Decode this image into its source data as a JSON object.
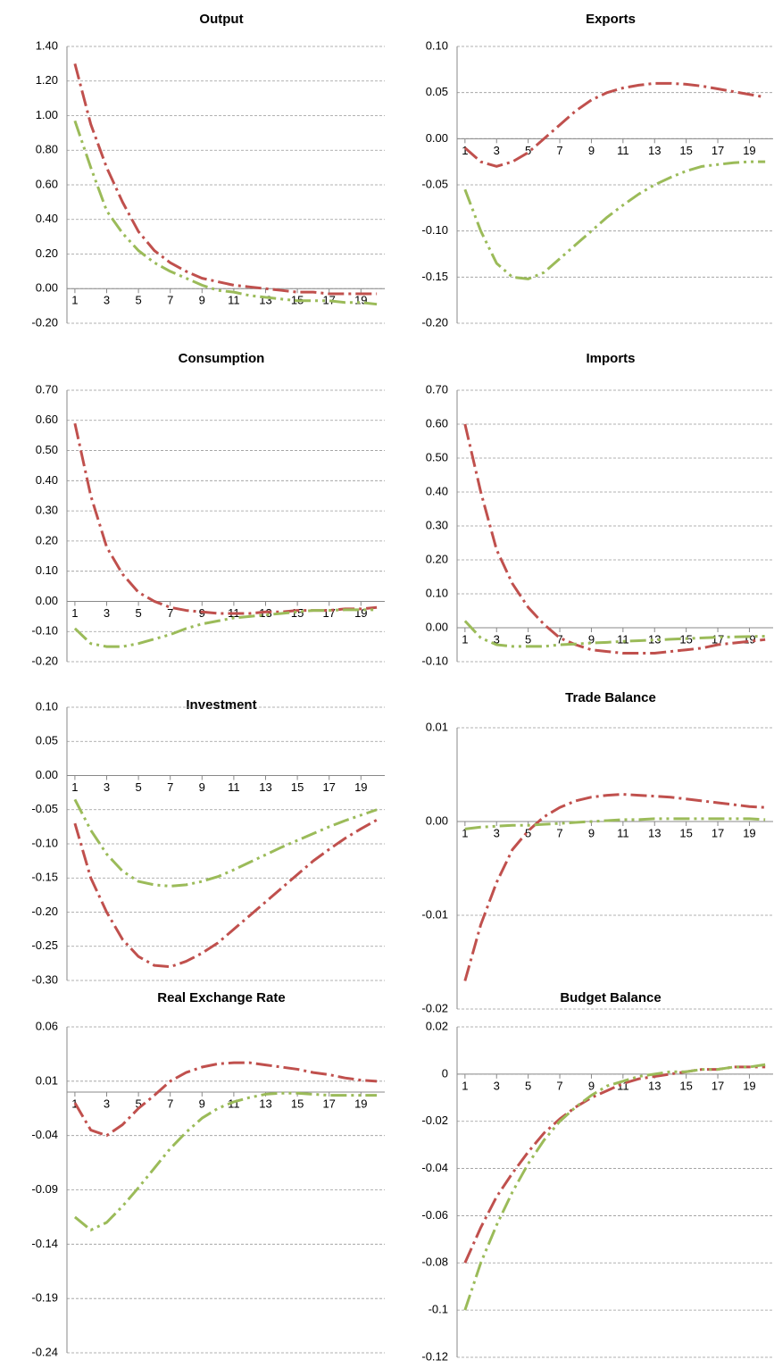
{
  "chart_data": [
    {
      "type": "line",
      "title": "Output",
      "x": [
        1,
        2,
        3,
        4,
        5,
        6,
        7,
        8,
        9,
        10,
        11,
        12,
        13,
        14,
        15,
        16,
        17,
        18,
        19,
        20
      ],
      "xlim": [
        0.5,
        20.5
      ],
      "xticks": [
        1,
        3,
        5,
        7,
        9,
        11,
        13,
        15,
        17,
        19
      ],
      "ylim": [
        -0.2,
        1.4
      ],
      "yticks": [
        {
          "value": 1.4,
          "label": "1.40"
        },
        {
          "value": 1.2,
          "label": "1.20"
        },
        {
          "value": 1,
          "label": "1.00"
        },
        {
          "value": 0.8,
          "label": "0.80"
        },
        {
          "value": 0.6,
          "label": "0.60"
        },
        {
          "value": 0.4,
          "label": "0.40"
        },
        {
          "value": 0.2,
          "label": "0.20"
        },
        {
          "value": 0,
          "label": "0.00"
        },
        {
          "value": -0.2,
          "label": "-0.20"
        }
      ],
      "grid": true,
      "series": [
        {
          "color": "#c0504d",
          "values": [
            1.3,
            0.95,
            0.7,
            0.5,
            0.33,
            0.22,
            0.15,
            0.1,
            0.06,
            0.04,
            0.02,
            0.01,
            0.0,
            -0.01,
            -0.02,
            -0.02,
            -0.03,
            -0.03,
            -0.03,
            -0.03
          ]
        },
        {
          "color": "#9bbb59",
          "values": [
            0.97,
            0.7,
            0.45,
            0.32,
            0.22,
            0.15,
            0.1,
            0.06,
            0.02,
            -0.01,
            -0.02,
            -0.04,
            -0.05,
            -0.06,
            -0.07,
            -0.07,
            -0.07,
            -0.08,
            -0.08,
            -0.09
          ]
        }
      ]
    },
    {
      "type": "line",
      "title": "Exports",
      "x": [
        1,
        2,
        3,
        4,
        5,
        6,
        7,
        8,
        9,
        10,
        11,
        12,
        13,
        14,
        15,
        16,
        17,
        18,
        19,
        20
      ],
      "xlim": [
        0.5,
        20.5
      ],
      "xticks": [
        1,
        3,
        5,
        7,
        9,
        11,
        13,
        15,
        17,
        19
      ],
      "ylim": [
        -0.2,
        0.1
      ],
      "yticks": [
        {
          "value": 0.1,
          "label": "0.10"
        },
        0.05,
        {
          "value": 0,
          "label": "0.00"
        },
        -0.05,
        {
          "value": -0.1,
          "label": "-0.10"
        },
        -0.15,
        {
          "value": -0.2,
          "label": "-0.20"
        }
      ],
      "grid": true,
      "series": [
        {
          "color": "#c0504d",
          "values": [
            -0.01,
            -0.025,
            -0.03,
            -0.025,
            -0.015,
            0.0,
            0.015,
            0.03,
            0.042,
            0.05,
            0.055,
            0.058,
            0.06,
            0.06,
            0.059,
            0.057,
            0.054,
            0.051,
            0.048,
            0.045
          ]
        },
        {
          "color": "#9bbb59",
          "values": [
            -0.055,
            -0.1,
            -0.135,
            -0.15,
            -0.152,
            -0.145,
            -0.13,
            -0.115,
            -0.1,
            -0.085,
            -0.072,
            -0.06,
            -0.05,
            -0.042,
            -0.035,
            -0.03,
            -0.028,
            -0.026,
            -0.025,
            -0.025
          ]
        }
      ]
    },
    {
      "type": "line",
      "title": "Consumption",
      "x": [
        1,
        2,
        3,
        4,
        5,
        6,
        7,
        8,
        9,
        10,
        11,
        12,
        13,
        14,
        15,
        16,
        17,
        18,
        19,
        20
      ],
      "xlim": [
        0.5,
        20.5
      ],
      "xticks": [
        1,
        3,
        5,
        7,
        9,
        11,
        13,
        15,
        17,
        19
      ],
      "ylim": [
        -0.2,
        0.7
      ],
      "yticks": [
        {
          "value": 0.7,
          "label": "0.70"
        },
        {
          "value": 0.6,
          "label": "0.60"
        },
        {
          "value": 0.5,
          "label": "0.50"
        },
        {
          "value": 0.4,
          "label": "0.40"
        },
        {
          "value": 0.3,
          "label": "0.30"
        },
        {
          "value": 0.2,
          "label": "0.20"
        },
        {
          "value": 0.1,
          "label": "0.10"
        },
        {
          "value": 0,
          "label": "0.00"
        },
        {
          "value": -0.1,
          "label": "-0.10"
        },
        {
          "value": -0.2,
          "label": "-0.20"
        }
      ],
      "grid": true,
      "series": [
        {
          "color": "#c0504d",
          "values": [
            0.59,
            0.35,
            0.18,
            0.09,
            0.03,
            0.0,
            -0.02,
            -0.03,
            -0.035,
            -0.04,
            -0.04,
            -0.04,
            -0.035,
            -0.035,
            -0.03,
            -0.03,
            -0.03,
            -0.025,
            -0.025,
            -0.02
          ]
        },
        {
          "color": "#9bbb59",
          "values": [
            -0.09,
            -0.14,
            -0.15,
            -0.15,
            -0.14,
            -0.125,
            -0.11,
            -0.09,
            -0.075,
            -0.065,
            -0.055,
            -0.05,
            -0.045,
            -0.04,
            -0.035,
            -0.03,
            -0.03,
            -0.028,
            -0.028,
            -0.028
          ]
        }
      ]
    },
    {
      "type": "line",
      "title": "Imports",
      "x": [
        1,
        2,
        3,
        4,
        5,
        6,
        7,
        8,
        9,
        10,
        11,
        12,
        13,
        14,
        15,
        16,
        17,
        18,
        19,
        20
      ],
      "xlim": [
        0.5,
        20.5
      ],
      "xticks": [
        1,
        3,
        5,
        7,
        9,
        11,
        13,
        15,
        17,
        19
      ],
      "ylim": [
        -0.1,
        0.7
      ],
      "yticks": [
        {
          "value": 0.7,
          "label": "0.70"
        },
        {
          "value": 0.6,
          "label": "0.60"
        },
        {
          "value": 0.5,
          "label": "0.50"
        },
        {
          "value": 0.4,
          "label": "0.40"
        },
        {
          "value": 0.3,
          "label": "0.30"
        },
        {
          "value": 0.2,
          "label": "0.20"
        },
        {
          "value": 0.1,
          "label": "0.10"
        },
        {
          "value": 0,
          "label": "0.00"
        },
        {
          "value": -0.1,
          "label": "-0.10"
        }
      ],
      "grid": true,
      "series": [
        {
          "color": "#c0504d",
          "values": [
            0.6,
            0.4,
            0.23,
            0.13,
            0.06,
            0.01,
            -0.03,
            -0.05,
            -0.065,
            -0.07,
            -0.075,
            -0.075,
            -0.075,
            -0.07,
            -0.065,
            -0.06,
            -0.05,
            -0.045,
            -0.04,
            -0.035
          ]
        },
        {
          "color": "#9bbb59",
          "values": [
            0.02,
            -0.03,
            -0.05,
            -0.055,
            -0.055,
            -0.055,
            -0.05,
            -0.048,
            -0.045,
            -0.043,
            -0.04,
            -0.038,
            -0.036,
            -0.034,
            -0.032,
            -0.03,
            -0.028,
            -0.027,
            -0.026,
            -0.025
          ]
        }
      ]
    },
    {
      "type": "line",
      "title": "Investment",
      "x": [
        1,
        2,
        3,
        4,
        5,
        6,
        7,
        8,
        9,
        10,
        11,
        12,
        13,
        14,
        15,
        16,
        17,
        18,
        19,
        20
      ],
      "xlim": [
        0.5,
        20.5
      ],
      "xticks": [
        1,
        3,
        5,
        7,
        9,
        11,
        13,
        15,
        17,
        19
      ],
      "ylim": [
        -0.3,
        0.1
      ],
      "yticks": [
        {
          "value": 0.1,
          "label": "0.10"
        },
        0.05,
        {
          "value": 0,
          "label": "0.00"
        },
        -0.05,
        {
          "value": -0.1,
          "label": "-0.10"
        },
        -0.15,
        {
          "value": -0.2,
          "label": "-0.20"
        },
        -0.25,
        {
          "value": -0.3,
          "label": "-0.30"
        }
      ],
      "grid": true,
      "series": [
        {
          "color": "#c0504d",
          "values": [
            -0.07,
            -0.15,
            -0.2,
            -0.24,
            -0.265,
            -0.278,
            -0.28,
            -0.272,
            -0.26,
            -0.245,
            -0.225,
            -0.205,
            -0.185,
            -0.165,
            -0.145,
            -0.125,
            -0.108,
            -0.092,
            -0.078,
            -0.065
          ]
        },
        {
          "color": "#9bbb59",
          "values": [
            -0.035,
            -0.08,
            -0.115,
            -0.14,
            -0.155,
            -0.16,
            -0.162,
            -0.16,
            -0.155,
            -0.148,
            -0.138,
            -0.127,
            -0.116,
            -0.105,
            -0.095,
            -0.085,
            -0.075,
            -0.066,
            -0.058,
            -0.05
          ]
        }
      ]
    },
    {
      "type": "line",
      "title": "Trade Balance",
      "x": [
        1,
        2,
        3,
        4,
        5,
        6,
        7,
        8,
        9,
        10,
        11,
        12,
        13,
        14,
        15,
        16,
        17,
        18,
        19,
        20
      ],
      "xlim": [
        0.5,
        20.5
      ],
      "xticks": [
        1,
        3,
        5,
        7,
        9,
        11,
        13,
        15,
        17,
        19
      ],
      "ylim": [
        -0.02,
        0.01
      ],
      "yticks": [
        0.01,
        {
          "value": 0,
          "label": "0.00"
        },
        -0.01,
        -0.02
      ],
      "grid": true,
      "series": [
        {
          "color": "#c0504d",
          "values": [
            -0.017,
            -0.011,
            -0.0065,
            -0.003,
            -0.001,
            0.0005,
            0.0015,
            0.0022,
            0.0026,
            0.0028,
            0.0029,
            0.0028,
            0.0027,
            0.0026,
            0.0024,
            0.0022,
            0.002,
            0.0018,
            0.0016,
            0.0015
          ]
        },
        {
          "color": "#9bbb59",
          "values": [
            -0.0008,
            -0.0006,
            -0.0005,
            -0.0004,
            -0.0004,
            -0.0003,
            -0.0002,
            -0.0001,
            0,
            0.0001,
            0.0002,
            0.0002,
            0.0003,
            0.0003,
            0.0003,
            0.0003,
            0.0003,
            0.0003,
            0.0003,
            0.0002
          ]
        }
      ]
    },
    {
      "type": "line",
      "title": "Real Exchange Rate",
      "x": [
        1,
        2,
        3,
        4,
        5,
        6,
        7,
        8,
        9,
        10,
        11,
        12,
        13,
        14,
        15,
        16,
        17,
        18,
        19,
        20
      ],
      "xlim": [
        0.5,
        20.5
      ],
      "xticks": [
        1,
        3,
        5,
        7,
        9,
        11,
        13,
        15,
        17,
        19
      ],
      "ylim": [
        -0.24,
        0.06
      ],
      "yticks": [
        0.06,
        0.01,
        -0.04,
        -0.09,
        -0.14,
        -0.19,
        -0.24
      ],
      "grid": true,
      "series": [
        {
          "color": "#c0504d",
          "values": [
            -0.01,
            -0.035,
            -0.04,
            -0.03,
            -0.015,
            -0.003,
            0.01,
            0.018,
            0.023,
            0.026,
            0.027,
            0.027,
            0.025,
            0.023,
            0.021,
            0.018,
            0.016,
            0.013,
            0.011,
            0.01
          ]
        },
        {
          "color": "#9bbb59",
          "values": [
            -0.115,
            -0.127,
            -0.12,
            -0.105,
            -0.088,
            -0.07,
            -0.052,
            -0.037,
            -0.024,
            -0.015,
            -0.009,
            -0.005,
            -0.002,
            -0.001,
            -0.001,
            -0.002,
            -0.003,
            -0.003,
            -0.003,
            -0.003
          ]
        }
      ]
    },
    {
      "type": "line",
      "title": "Budget Balance",
      "x": [
        1,
        2,
        3,
        4,
        5,
        6,
        7,
        8,
        9,
        10,
        11,
        12,
        13,
        14,
        15,
        16,
        17,
        18,
        19,
        20
      ],
      "xlim": [
        0.5,
        20.5
      ],
      "xticks": [
        1,
        3,
        5,
        7,
        9,
        11,
        13,
        15,
        17,
        19
      ],
      "ylim": [
        -0.12,
        0.02
      ],
      "yticks": [
        0.02,
        0,
        -0.02,
        -0.04,
        -0.06,
        -0.08,
        -0.1,
        -0.12
      ],
      "grid": true,
      "series": [
        {
          "color": "#c0504d",
          "values": [
            -0.08,
            -0.065,
            -0.052,
            -0.042,
            -0.033,
            -0.025,
            -0.019,
            -0.014,
            -0.01,
            -0.007,
            -0.004,
            -0.002,
            -0.001,
            0,
            0.001,
            0.002,
            0.002,
            0.003,
            0.003,
            0.003
          ]
        },
        {
          "color": "#9bbb59",
          "values": [
            -0.1,
            -0.08,
            -0.064,
            -0.05,
            -0.038,
            -0.028,
            -0.02,
            -0.014,
            -0.009,
            -0.005,
            -0.003,
            -0.001,
            0,
            0.001,
            0.001,
            0.002,
            0.002,
            0.003,
            0.003,
            0.004
          ]
        }
      ]
    }
  ]
}
